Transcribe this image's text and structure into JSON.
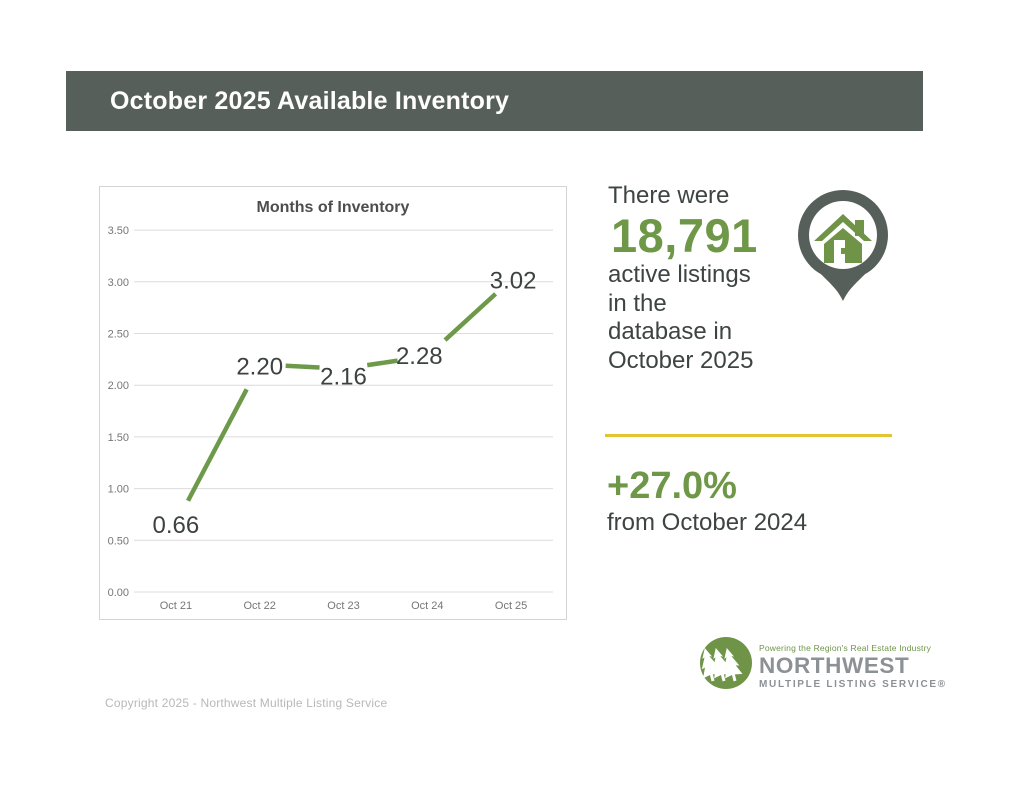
{
  "header": {
    "title": "October 2025 Available Inventory"
  },
  "chart_data": {
    "type": "line",
    "title": "Months of Inventory",
    "categories": [
      "Oct 21",
      "Oct 22",
      "Oct 23",
      "Oct 24",
      "Oct 25"
    ],
    "values": [
      0.66,
      2.2,
      2.16,
      2.28,
      3.02
    ],
    "point_labels": [
      "0.66",
      "2.20",
      "2.16",
      "2.28",
      "3.02"
    ],
    "xlabel": "",
    "ylabel": "",
    "ylim": [
      0,
      3.5
    ],
    "ytick_labels": [
      "0.00",
      "0.50",
      "1.00",
      "1.50",
      "2.00",
      "2.50",
      "3.00",
      "3.50"
    ],
    "grid": true,
    "legend_position": "none",
    "line_color": "#6d9a4a",
    "point_label_color": "#3d4240",
    "axis_label_color": "#767676",
    "title_color": "#4d4d4d",
    "gridline_color": "#dcdcdc",
    "panel_border_color": "#d4d4d4"
  },
  "stats": {
    "intro": "There were",
    "count": "18,791",
    "desc_lines": [
      "active listings",
      "in the",
      "database in",
      "October 2025"
    ],
    "change": "+27.0%",
    "change_desc": "from October 2024"
  },
  "logo": {
    "tagline": "Powering the Region's Real Estate Industry",
    "name": "NORTHWEST",
    "subname": "MULTIPLE LISTING SERVICE®"
  },
  "footer": {
    "copyright": "Copyright 2025 - Northwest Multiple Listing Service"
  },
  "colors": {
    "header_bg": "#575f5a",
    "accent_green": "#6f9748",
    "divider_yellow": "#e3c431",
    "body_text": "#3d4442",
    "pin_dark": "#565f5a"
  }
}
